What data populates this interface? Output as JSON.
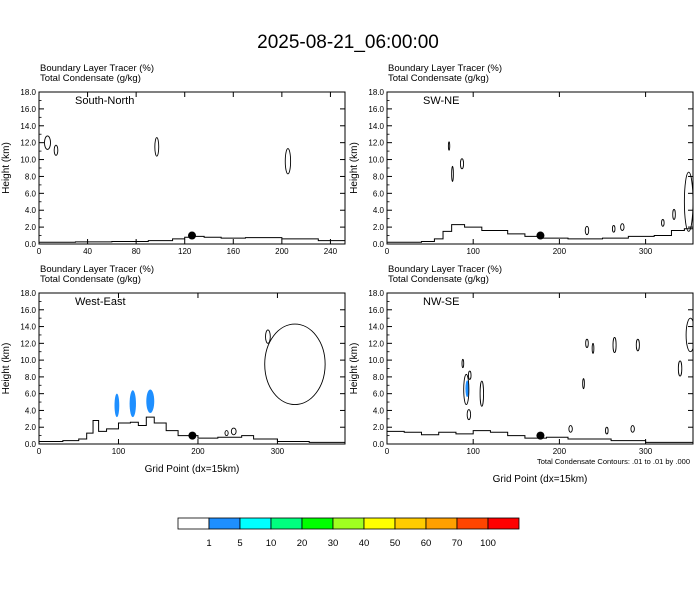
{
  "title": "2025-08-21_06:00:00",
  "footnote": "Total Condensate Contours: .01 to .01 by .000",
  "colorbar": {
    "labels": [
      "1",
      "5",
      "10",
      "20",
      "30",
      "40",
      "50",
      "60",
      "70",
      "100"
    ],
    "colors": [
      "#ffffff",
      "#1e8fff",
      "#00ffff",
      "#00ff7f",
      "#00ff00",
      "#a0ff20",
      "#ffff00",
      "#ffcc00",
      "#ffa000",
      "#ff4500",
      "#ff0000"
    ]
  },
  "chart_data": [
    {
      "type": "contour",
      "panel_label": "South-North",
      "header_line1": "Boundary Layer Tracer   (%)",
      "header_line2": "Total Condensate   (g/kg)",
      "ylabel": "Height (km)",
      "xlabel": "",
      "xlim": [
        0,
        252
      ],
      "ylim": [
        0,
        18
      ],
      "xticks": [
        "0",
        "40",
        "80",
        "120",
        "160",
        "200",
        "240"
      ],
      "yticks": [
        "0.0",
        "2.0",
        "4.0",
        "6.0",
        "8.0",
        "10.0",
        "12.0",
        "14.0",
        "16.0",
        "18.0"
      ],
      "terrain": [
        [
          0,
          0.2
        ],
        [
          30,
          0.25
        ],
        [
          60,
          0.3
        ],
        [
          90,
          0.4
        ],
        [
          110,
          0.6
        ],
        [
          120,
          0.8
        ],
        [
          128,
          0.9
        ],
        [
          136,
          0.8
        ],
        [
          150,
          0.7
        ],
        [
          170,
          0.75
        ],
        [
          200,
          0.6
        ],
        [
          230,
          0.4
        ],
        [
          252,
          0.3
        ]
      ],
      "marker": [
        126,
        1.0
      ],
      "condensate_contours": [
        {
          "x": 7,
          "y": 12.0,
          "rx": 2.5,
          "ry": 0.8
        },
        {
          "x": 14,
          "y": 11.1,
          "rx": 1.5,
          "ry": 0.6
        },
        {
          "x": 97,
          "y": 11.5,
          "rx": 1.6,
          "ry": 1.1
        },
        {
          "x": 205,
          "y": 9.8,
          "rx": 2.2,
          "ry": 1.5
        }
      ],
      "tracer_fill": []
    },
    {
      "type": "contour",
      "panel_label": "SW-NE",
      "header_line1": "Boundary Layer Tracer   (%)",
      "header_line2": "Total Condensate   (g/kg)",
      "ylabel": "Height (km)",
      "xlabel": "",
      "xlim": [
        0,
        355
      ],
      "ylim": [
        0,
        18
      ],
      "xticks": [
        "0",
        "100",
        "200",
        "300"
      ],
      "yticks": [
        "0.0",
        "2.0",
        "4.0",
        "6.0",
        "8.0",
        "10.0",
        "12.0",
        "14.0",
        "16.0",
        "18.0"
      ],
      "terrain": [
        [
          0,
          0.2
        ],
        [
          40,
          0.3
        ],
        [
          55,
          0.6
        ],
        [
          65,
          1.5
        ],
        [
          75,
          2.3
        ],
        [
          90,
          2.0
        ],
        [
          110,
          1.6
        ],
        [
          140,
          1.2
        ],
        [
          160,
          0.9
        ],
        [
          180,
          0.7
        ],
        [
          210,
          0.6
        ],
        [
          250,
          0.7
        ],
        [
          280,
          0.9
        ],
        [
          310,
          1.0
        ],
        [
          330,
          1.6
        ],
        [
          345,
          1.8
        ],
        [
          355,
          1.4
        ]
      ],
      "marker": [
        178,
        1.0
      ],
      "condensate_contours": [
        {
          "x": 72,
          "y": 11.6,
          "rx": 0.8,
          "ry": 0.5
        },
        {
          "x": 76,
          "y": 8.3,
          "rx": 1.0,
          "ry": 0.9
        },
        {
          "x": 87,
          "y": 9.5,
          "rx": 1.8,
          "ry": 0.6
        },
        {
          "x": 263,
          "y": 1.8,
          "rx": 1.5,
          "ry": 0.4
        },
        {
          "x": 273,
          "y": 2.0,
          "rx": 2.0,
          "ry": 0.4
        },
        {
          "x": 232,
          "y": 1.6,
          "rx": 2.0,
          "ry": 0.5
        },
        {
          "x": 320,
          "y": 2.5,
          "rx": 1.5,
          "ry": 0.4
        },
        {
          "x": 333,
          "y": 3.5,
          "rx": 1.5,
          "ry": 0.6
        },
        {
          "x": 350,
          "y": 5.0,
          "rx": 5.0,
          "ry": 3.5
        }
      ],
      "tracer_fill": []
    },
    {
      "type": "contour",
      "panel_label": "West-East",
      "header_line1": "Boundary Layer Tracer   (%)",
      "header_line2": "Total Condensate   (g/kg)",
      "ylabel": "Height (km)",
      "xlabel": "Grid Point (dx=15km)",
      "xlim": [
        0,
        385
      ],
      "ylim": [
        0,
        18
      ],
      "xticks": [
        "0",
        "100",
        "200",
        "300"
      ],
      "yticks": [
        "0.0",
        "2.0",
        "4.0",
        "6.0",
        "8.0",
        "10.0",
        "12.0",
        "14.0",
        "16.0",
        "18.0"
      ],
      "terrain": [
        [
          0,
          0.3
        ],
        [
          30,
          0.4
        ],
        [
          50,
          0.6
        ],
        [
          60,
          1.3
        ],
        [
          68,
          2.8
        ],
        [
          75,
          1.5
        ],
        [
          85,
          1.8
        ],
        [
          100,
          2.5
        ],
        [
          115,
          2.6
        ],
        [
          125,
          2.2
        ],
        [
          135,
          3.2
        ],
        [
          145,
          2.5
        ],
        [
          160,
          1.6
        ],
        [
          175,
          1.0
        ],
        [
          200,
          0.7
        ],
        [
          225,
          0.8
        ],
        [
          255,
          1.0
        ],
        [
          270,
          0.6
        ],
        [
          300,
          0.3
        ],
        [
          340,
          0.2
        ],
        [
          385,
          0.2
        ]
      ],
      "marker": [
        193,
        1.0
      ],
      "condensate_contours": [
        {
          "x": 245,
          "y": 1.5,
          "rx": 3.0,
          "ry": 0.4
        },
        {
          "x": 236,
          "y": 1.3,
          "rx": 2.0,
          "ry": 0.3
        },
        {
          "x": 322,
          "y": 9.5,
          "rx": 38,
          "ry": 4.8
        },
        {
          "x": 288,
          "y": 12.8,
          "rx": 3.0,
          "ry": 0.8
        }
      ],
      "tracer_fill": [
        {
          "x": 98,
          "y": 4.6,
          "rx": 3.0,
          "ry": 1.4,
          "level": "1-5"
        },
        {
          "x": 118,
          "y": 4.8,
          "rx": 4.0,
          "ry": 1.6,
          "level": "1-5"
        },
        {
          "x": 140,
          "y": 5.1,
          "rx": 5.0,
          "ry": 1.4,
          "level": "1-5"
        }
      ]
    },
    {
      "type": "contour",
      "panel_label": "NW-SE",
      "header_line1": "Boundary Layer Tracer   (%)",
      "header_line2": "Total Condensate   (g/kg)",
      "ylabel": "Height (km)",
      "xlabel": "Grid Point (dx=15km)",
      "xlim": [
        0,
        355
      ],
      "ylim": [
        0,
        18
      ],
      "xticks": [
        "0",
        "100",
        "200",
        "300"
      ],
      "yticks": [
        "0.0",
        "2.0",
        "4.0",
        "6.0",
        "8.0",
        "10.0",
        "12.0",
        "14.0",
        "16.0",
        "18.0"
      ],
      "terrain": [
        [
          0,
          1.5
        ],
        [
          20,
          1.4
        ],
        [
          40,
          1.1
        ],
        [
          60,
          1.4
        ],
        [
          80,
          1.2
        ],
        [
          100,
          1.6
        ],
        [
          120,
          1.4
        ],
        [
          140,
          1.0
        ],
        [
          160,
          0.7
        ],
        [
          185,
          0.8
        ],
        [
          210,
          0.6
        ],
        [
          260,
          0.4
        ],
        [
          300,
          0.2
        ],
        [
          355,
          0.2
        ]
      ],
      "marker": [
        178,
        1.0
      ],
      "condensate_contours": [
        {
          "x": 88,
          "y": 9.6,
          "rx": 1.0,
          "ry": 0.5
        },
        {
          "x": 92,
          "y": 6.5,
          "rx": 3.0,
          "ry": 1.8
        },
        {
          "x": 96,
          "y": 8.2,
          "rx": 1.5,
          "ry": 0.5
        },
        {
          "x": 110,
          "y": 6.0,
          "rx": 2.0,
          "ry": 1.5
        },
        {
          "x": 95,
          "y": 3.5,
          "rx": 2.0,
          "ry": 0.6
        },
        {
          "x": 213,
          "y": 1.8,
          "rx": 2.0,
          "ry": 0.4
        },
        {
          "x": 255,
          "y": 1.6,
          "rx": 1.5,
          "ry": 0.4
        },
        {
          "x": 285,
          "y": 1.8,
          "rx": 2.0,
          "ry": 0.4
        },
        {
          "x": 232,
          "y": 12.0,
          "rx": 1.5,
          "ry": 0.5
        },
        {
          "x": 239,
          "y": 11.4,
          "rx": 1.0,
          "ry": 0.6
        },
        {
          "x": 264,
          "y": 11.8,
          "rx": 1.8,
          "ry": 0.9
        },
        {
          "x": 291,
          "y": 11.8,
          "rx": 1.8,
          "ry": 0.7
        },
        {
          "x": 228,
          "y": 7.2,
          "rx": 1.0,
          "ry": 0.6
        },
        {
          "x": 340,
          "y": 9.0,
          "rx": 2.0,
          "ry": 0.9
        },
        {
          "x": 352,
          "y": 13.0,
          "rx": 5.0,
          "ry": 2.0
        }
      ],
      "tracer_fill": [
        {
          "x": 93,
          "y": 6.6,
          "rx": 2.0,
          "ry": 1.0,
          "level": "1-5"
        }
      ]
    }
  ]
}
